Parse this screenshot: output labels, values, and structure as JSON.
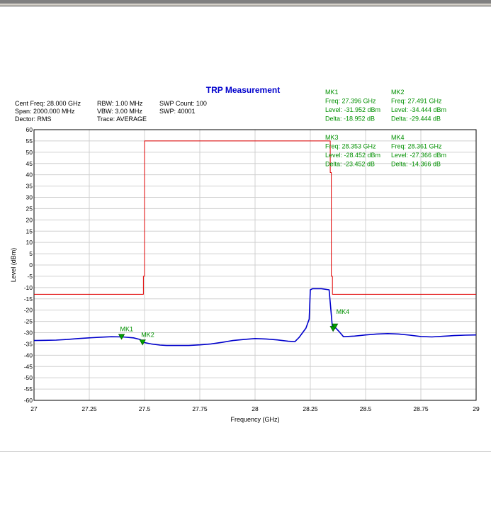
{
  "chart_data": {
    "type": "line",
    "title": "TRP Measurement",
    "xlabel": "Frequency (GHz)",
    "ylabel": "Level (dBm)",
    "xlim": [
      27,
      29
    ],
    "ylim": [
      -60,
      60
    ],
    "x_ticks": [
      "27",
      "27.25",
      "27.5",
      "27.75",
      "28",
      "28.25",
      "28.5",
      "28.75",
      "29"
    ],
    "y_ticks": [
      "60",
      "55",
      "50",
      "45",
      "40",
      "35",
      "30",
      "25",
      "20",
      "15",
      "10",
      "5",
      "0",
      "-5",
      "-10",
      "-15",
      "-20",
      "-25",
      "-30",
      "-35",
      "-40",
      "-45",
      "-50",
      "-55",
      "-60"
    ],
    "grid": true,
    "colors": {
      "title": "#0000cc",
      "limit": "#e00000",
      "trace": "#0000cc",
      "marker": "#00a000",
      "marker_text": "#009000",
      "grid": "#d0d0d0"
    },
    "info": [
      [
        "Cent Freq: 28.000 GHz",
        "RBW: 1.00 MHz",
        "SWP Count: 100"
      ],
      [
        "Span: 2000.000 MHz",
        "VBW: 3.00 MHz",
        "SWP: 40001"
      ],
      [
        "Dector: RMS",
        "Trace: AVERAGE",
        ""
      ]
    ],
    "series": [
      {
        "role": "limit",
        "x": [
          27,
          27.495,
          27.495,
          27.5,
          27.5,
          28.34,
          28.34,
          28.345,
          28.345,
          28.35,
          28.35,
          29
        ],
        "y": [
          -13,
          -13,
          -5,
          -5,
          55,
          55,
          41,
          41,
          -5,
          -5,
          -13,
          -13
        ]
      },
      {
        "role": "trace",
        "x": [
          27,
          27.05,
          27.1,
          27.15,
          27.2,
          27.25,
          27.3,
          27.35,
          27.4,
          27.45,
          27.48,
          27.5,
          27.53,
          27.57,
          27.6,
          27.65,
          27.7,
          27.75,
          27.8,
          27.85,
          27.9,
          27.95,
          28,
          28.05,
          28.1,
          28.15,
          28.18,
          28.2,
          28.23,
          28.245,
          28.25,
          28.26,
          28.3,
          28.335,
          28.345,
          28.35,
          28.36,
          28.38,
          28.4,
          28.45,
          28.5,
          28.55,
          28.6,
          28.65,
          28.7,
          28.75,
          28.8,
          28.85,
          28.9,
          28.95,
          29
        ],
        "y": [
          -33.5,
          -33.4,
          -33.3,
          -33,
          -32.6,
          -32.3,
          -32,
          -31.8,
          -31.9,
          -32.3,
          -33,
          -34.4,
          -35,
          -35.5,
          -35.7,
          -35.7,
          -35.7,
          -35.4,
          -35,
          -34.3,
          -33.5,
          -33,
          -32.6,
          -32.8,
          -33.2,
          -33.8,
          -34,
          -32,
          -28,
          -24,
          -11,
          -10.5,
          -10.5,
          -11,
          -22,
          -28,
          -27.4,
          -29.5,
          -31.8,
          -31.5,
          -31,
          -30.6,
          -30.4,
          -30.6,
          -31.1,
          -31.7,
          -31.9,
          -31.6,
          -31.3,
          -31.1,
          -31
        ]
      }
    ],
    "markers": [
      {
        "label": "MK1",
        "x": 27.396,
        "y": -31.952
      },
      {
        "label": "MK2",
        "x": 27.491,
        "y": -34.444
      },
      {
        "label": "MK3",
        "x": 28.353,
        "y": -28.452
      },
      {
        "label": "MK4",
        "x": 28.361,
        "y": -27.366
      }
    ],
    "marker_table": [
      [
        "MK1",
        "Freq: 27.396 GHz",
        "Level: -31.952 dBm",
        "Delta: -18.952 dB"
      ],
      [
        "MK2",
        "Freq: 27.491 GHz",
        "Level: -34.444 dBm",
        "Delta: -29.444 dB"
      ],
      [
        "MK3",
        "Freq: 28.353 GHz",
        "Level: -28.452 dBm",
        "Delta: -23.452 dB"
      ],
      [
        "MK4",
        "Freq: 28.361 GHz",
        "Level: -27.366 dBm",
        "Delta: -14.366 dB"
      ]
    ]
  }
}
